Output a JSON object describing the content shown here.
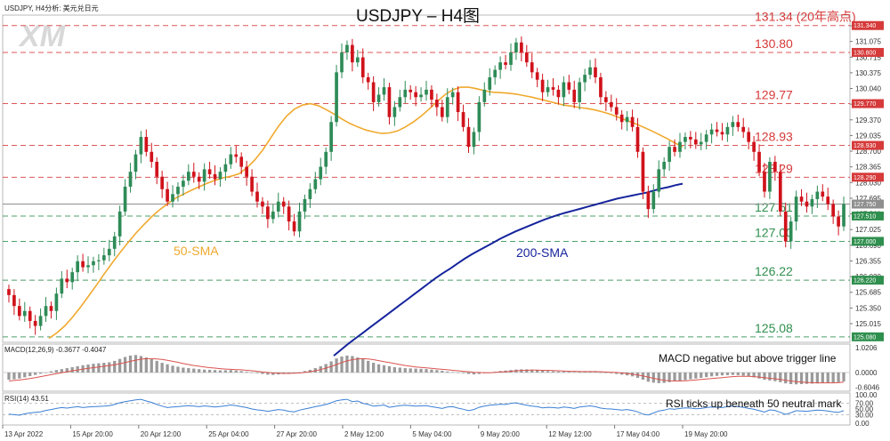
{
  "header_left": "USDJPY, H4分析: 美元兑日元",
  "logo_text": "XM",
  "title": "USDJPY – H4图",
  "colors": {
    "up": "#2e8b57",
    "down": "#d0121b",
    "sma50": "#f0a92e",
    "sma200": "#16249c",
    "resistance": "#d63a3a",
    "support": "#2f8f4e",
    "current": "#8f8f8f",
    "macd_hist": "#9a9a9a",
    "macd_signal": "#d9534f",
    "rsi": "#3b7fd4"
  },
  "chart_data": {
    "type": "candlestick",
    "ylim": [
      124.97,
      131.55
    ],
    "price_ticks": [
      "131.415",
      "131.075",
      "130.715",
      "130.375",
      "130.040",
      "129.705",
      "129.370",
      "129.035",
      "128.700",
      "128.365",
      "128.030",
      "127.695",
      "127.360",
      "127.025",
      "126.690",
      "126.355",
      "126.020",
      "125.685",
      "125.350",
      "125.015"
    ],
    "x_tick_labels": [
      "13 Apr 2022",
      "15 Apr 20:00",
      "20 Apr 12:00",
      "25 Apr 04:00",
      "27 Apr 20:00",
      "2 May 12:00",
      "5 May 04:00",
      "9 May 20:00",
      "12 May 12:00",
      "17 May 04:00",
      "19 May 20:00"
    ],
    "levels": [
      {
        "value": 131.34,
        "label": "131.34 (20年高点)",
        "tag": "131.340",
        "kind": "resistance"
      },
      {
        "value": 130.8,
        "label": "130.80",
        "tag": "130.800",
        "kind": "resistance"
      },
      {
        "value": 129.77,
        "label": "129.77",
        "tag": "129.770",
        "kind": "resistance"
      },
      {
        "value": 128.93,
        "label": "128.93",
        "tag": "128.930",
        "kind": "resistance"
      },
      {
        "value": 128.29,
        "label": "128.29",
        "tag": "128.290",
        "kind": "resistance"
      },
      {
        "value": 127.51,
        "label": "127.51",
        "tag": "127.510",
        "kind": "support"
      },
      {
        "value": 127.0,
        "label": "127.00",
        "tag": "127.000",
        "kind": "support"
      },
      {
        "value": 126.22,
        "label": "126.22",
        "tag": "126.220",
        "kind": "support"
      },
      {
        "value": 125.08,
        "label": "125.08",
        "tag": "125.080",
        "kind": "support"
      }
    ],
    "current_price": {
      "value": 127.75,
      "tag": "127.750"
    },
    "sma_labels": {
      "sma50": "50-SMA",
      "sma200": "200-SMA"
    },
    "closes": [
      125.92,
      125.7,
      125.5,
      125.6,
      125.4,
      125.3,
      125.5,
      125.7,
      125.6,
      125.95,
      126.25,
      126.18,
      126.38,
      126.6,
      126.48,
      126.52,
      126.6,
      126.62,
      126.72,
      126.85,
      127.1,
      127.6,
      128.1,
      128.4,
      128.75,
      129.1,
      128.8,
      128.6,
      128.3,
      128.05,
      127.8,
      127.95,
      128.1,
      128.22,
      128.4,
      128.3,
      128.2,
      128.45,
      128.35,
      128.25,
      128.4,
      128.55,
      128.75,
      128.7,
      128.5,
      128.3,
      128.0,
      127.8,
      127.7,
      127.45,
      127.6,
      127.8,
      127.7,
      127.4,
      127.2,
      127.6,
      127.85,
      128.05,
      128.25,
      128.5,
      128.8,
      129.4,
      130.4,
      130.8,
      130.95,
      130.6,
      130.7,
      130.3,
      130.2,
      129.8,
      129.95,
      130.1,
      129.5,
      129.7,
      129.9,
      130.05,
      130.0,
      129.9,
      129.95,
      130.05,
      129.85,
      129.7,
      129.5,
      129.9,
      130.0,
      129.6,
      129.3,
      128.9,
      129.2,
      129.8,
      130.05,
      130.3,
      130.45,
      130.6,
      130.55,
      130.8,
      131.0,
      130.8,
      130.6,
      130.4,
      130.25,
      130.0,
      130.1,
      130.05,
      129.9,
      130.2,
      130.05,
      129.8,
      130.2,
      130.35,
      130.5,
      130.3,
      129.9,
      129.8,
      129.7,
      129.55,
      129.4,
      129.5,
      129.3,
      128.8,
      128.0,
      127.65,
      128.0,
      128.45,
      128.6,
      128.9,
      128.8,
      129.0,
      129.1,
      129.05,
      128.95,
      129.0,
      129.15,
      129.25,
      129.2,
      129.15,
      129.3,
      129.4,
      129.3,
      129.2,
      129.0,
      128.8,
      128.4,
      128.0,
      128.6,
      128.4,
      127.6,
      127.0,
      127.4,
      127.9,
      127.8,
      127.7,
      127.85,
      128.0,
      127.9,
      127.75,
      127.5,
      127.3,
      127.75
    ],
    "sma50": [
      125.05,
      125.16,
      125.3,
      125.48,
      125.68,
      125.9,
      126.12,
      126.35,
      126.57,
      126.78,
      126.98,
      127.17,
      127.34,
      127.5,
      127.64,
      127.76,
      127.87,
      127.95,
      128.03,
      128.1,
      128.17,
      128.23,
      128.28,
      128.31,
      128.36,
      128.48,
      128.64,
      128.84,
      129.08,
      129.32,
      129.52,
      129.66,
      129.74,
      129.77,
      129.73,
      129.65,
      129.56,
      129.46,
      129.37,
      129.3,
      129.24,
      129.2,
      129.17,
      129.18,
      129.22,
      129.3,
      129.4,
      129.52,
      129.66,
      129.81,
      129.95,
      130.05,
      130.1,
      130.1,
      130.07,
      130.03,
      130.0,
      129.99,
      129.98,
      129.96,
      129.93,
      129.9,
      129.86,
      129.82,
      129.78,
      129.74,
      129.72,
      129.69,
      129.67,
      129.64,
      129.6,
      129.55,
      129.49,
      129.43,
      129.37,
      129.3,
      129.23,
      129.15,
      129.07,
      128.98,
      128.9
    ],
    "sma200": [
      124.7,
      124.82,
      124.94,
      125.05,
      125.16,
      125.27,
      125.38,
      125.49,
      125.6,
      125.71,
      125.82,
      125.93,
      126.04,
      126.15,
      126.26,
      126.36,
      126.45,
      126.55,
      126.65,
      126.74,
      126.82,
      126.9,
      126.98,
      127.06,
      127.13,
      127.2,
      127.26,
      127.32,
      127.38,
      127.44,
      127.49,
      127.54,
      127.58,
      127.62,
      127.66,
      127.7,
      127.74,
      127.78,
      127.82,
      127.86,
      127.89,
      127.92,
      127.95,
      127.98,
      128.02,
      128.06,
      128.09,
      128.13,
      128.16
    ],
    "macd": {
      "label": "MACD(12,26,9) -0.3677 -0.4047",
      "ticks": [
        "1.0206",
        "0.0000",
        "-0.6046"
      ],
      "ylim": [
        -0.7,
        1.1
      ],
      "hist": [
        -0.3,
        -0.28,
        -0.25,
        -0.2,
        -0.15,
        -0.1,
        -0.05,
        0.0,
        0.05,
        0.1,
        0.14,
        0.18,
        0.22,
        0.26,
        0.3,
        0.33,
        0.36,
        0.38,
        0.4,
        0.42,
        0.48,
        0.56,
        0.64,
        0.7,
        0.72,
        0.68,
        0.62,
        0.55,
        0.48,
        0.4,
        0.34,
        0.28,
        0.24,
        0.2,
        0.18,
        0.16,
        0.14,
        0.12,
        0.11,
        0.1,
        0.09,
        0.09,
        0.1,
        0.08,
        0.06,
        0.03,
        0.0,
        -0.03,
        -0.06,
        -0.09,
        -0.1,
        -0.08,
        -0.06,
        -0.04,
        -0.02,
        0.01,
        0.06,
        0.11,
        0.18,
        0.26,
        0.35,
        0.46,
        0.58,
        0.66,
        0.7,
        0.68,
        0.62,
        0.55,
        0.48,
        0.4,
        0.34,
        0.3,
        0.26,
        0.22,
        0.2,
        0.18,
        0.17,
        0.16,
        0.15,
        0.14,
        0.12,
        0.1,
        0.07,
        0.04,
        0.02,
        0.0,
        -0.03,
        -0.06,
        -0.08,
        -0.06,
        -0.03,
        0.0,
        0.03,
        0.06,
        0.08,
        0.1,
        0.12,
        0.13,
        0.13,
        0.12,
        0.1,
        0.08,
        0.06,
        0.05,
        0.04,
        0.04,
        0.03,
        0.02,
        0.03,
        0.04,
        0.04,
        0.03,
        0.01,
        -0.01,
        -0.03,
        -0.06,
        -0.09,
        -0.12,
        -0.16,
        -0.22,
        -0.3,
        -0.38,
        -0.42,
        -0.44,
        -0.43,
        -0.4,
        -0.37,
        -0.34,
        -0.31,
        -0.28,
        -0.25,
        -0.22,
        -0.19,
        -0.16,
        -0.14,
        -0.12,
        -0.11,
        -0.1,
        -0.11,
        -0.13,
        -0.16,
        -0.2,
        -0.25,
        -0.3,
        -0.33,
        -0.36,
        -0.4,
        -0.45,
        -0.48,
        -0.49,
        -0.48,
        -0.47,
        -0.46,
        -0.45,
        -0.44,
        -0.43,
        -0.42,
        -0.4,
        -0.37
      ],
      "signal": [
        -0.35,
        -0.33,
        -0.31,
        -0.28,
        -0.25,
        -0.21,
        -0.17,
        -0.13,
        -0.09,
        -0.05,
        -0.01,
        0.03,
        0.07,
        0.1,
        0.14,
        0.17,
        0.2,
        0.23,
        0.26,
        0.29,
        0.32,
        0.36,
        0.41,
        0.46,
        0.51,
        0.55,
        0.57,
        0.57,
        0.56,
        0.54,
        0.5,
        0.46,
        0.42,
        0.37,
        0.33,
        0.29,
        0.26,
        0.23,
        0.2,
        0.18,
        0.16,
        0.14,
        0.13,
        0.12,
        0.11,
        0.09,
        0.07,
        0.05,
        0.02,
        0.0,
        -0.02,
        -0.03,
        -0.04,
        -0.04,
        -0.03,
        -0.02,
        0.0,
        0.03,
        0.07,
        0.12,
        0.18,
        0.25,
        0.33,
        0.41,
        0.48,
        0.53,
        0.56,
        0.57,
        0.56,
        0.53,
        0.49,
        0.45,
        0.41,
        0.37,
        0.33,
        0.29,
        0.26,
        0.23,
        0.21,
        0.19,
        0.17,
        0.15,
        0.13,
        0.11,
        0.09,
        0.07,
        0.05,
        0.03,
        0.01,
        0.0,
        -0.01,
        -0.01,
        0.0,
        0.02,
        0.03,
        0.05,
        0.07,
        0.08,
        0.09,
        0.1,
        0.1,
        0.09,
        0.09,
        0.08,
        0.07,
        0.06,
        0.05,
        0.05,
        0.04,
        0.04,
        0.04,
        0.04,
        0.03,
        0.02,
        0.01,
        0.0,
        -0.02,
        -0.04,
        -0.07,
        -0.1,
        -0.14,
        -0.19,
        -0.24,
        -0.28,
        -0.32,
        -0.34,
        -0.35,
        -0.35,
        -0.34,
        -0.33,
        -0.31,
        -0.29,
        -0.27,
        -0.25,
        -0.23,
        -0.21,
        -0.19,
        -0.17,
        -0.16,
        -0.16,
        -0.16,
        -0.17,
        -0.19,
        -0.21,
        -0.24,
        -0.26,
        -0.29,
        -0.32,
        -0.35,
        -0.38,
        -0.4,
        -0.41,
        -0.42,
        -0.43,
        -0.43,
        -0.43,
        -0.43,
        -0.42,
        -0.4
      ]
    },
    "rsi": {
      "label": "RSI(14) 43.51",
      "ticks": [
        "100.00",
        "70.00",
        "50.00",
        "30.00",
        "0.00"
      ],
      "ylim": [
        0,
        100
      ],
      "values": [
        32,
        30,
        28,
        33,
        36,
        38,
        40,
        45,
        48,
        52,
        55,
        53,
        56,
        58,
        55,
        57,
        58,
        59,
        60,
        62,
        66,
        72,
        76,
        79,
        82,
        84,
        78,
        73,
        66,
        60,
        55,
        57,
        58,
        60,
        62,
        60,
        58,
        61,
        59,
        57,
        59,
        61,
        64,
        62,
        58,
        55,
        50,
        47,
        45,
        42,
        45,
        48,
        46,
        42,
        40,
        46,
        50,
        54,
        58,
        62,
        66,
        72,
        79,
        82,
        84,
        76,
        78,
        70,
        66,
        60,
        62,
        64,
        56,
        59,
        62,
        63,
        62,
        60,
        61,
        62,
        58,
        55,
        52,
        57,
        58,
        53,
        49,
        44,
        48,
        56,
        60,
        63,
        65,
        67,
        66,
        70,
        72,
        67,
        63,
        60,
        58,
        54,
        56,
        55,
        53,
        57,
        55,
        52,
        57,
        59,
        61,
        58,
        53,
        51,
        50,
        48,
        46,
        48,
        45,
        40,
        32,
        29,
        36,
        43,
        46,
        51,
        49,
        52,
        54,
        53,
        51,
        52,
        55,
        57,
        56,
        55,
        58,
        60,
        58,
        56,
        52,
        49,
        44,
        39,
        47,
        45,
        38,
        31,
        37,
        44,
        43,
        42,
        44,
        46,
        45,
        43,
        40,
        38,
        44
      ]
    },
    "notes": {
      "macd": "MACD negative but above trigger line",
      "rsi": "RSI ticks up beneath 50 neutral mark"
    }
  }
}
